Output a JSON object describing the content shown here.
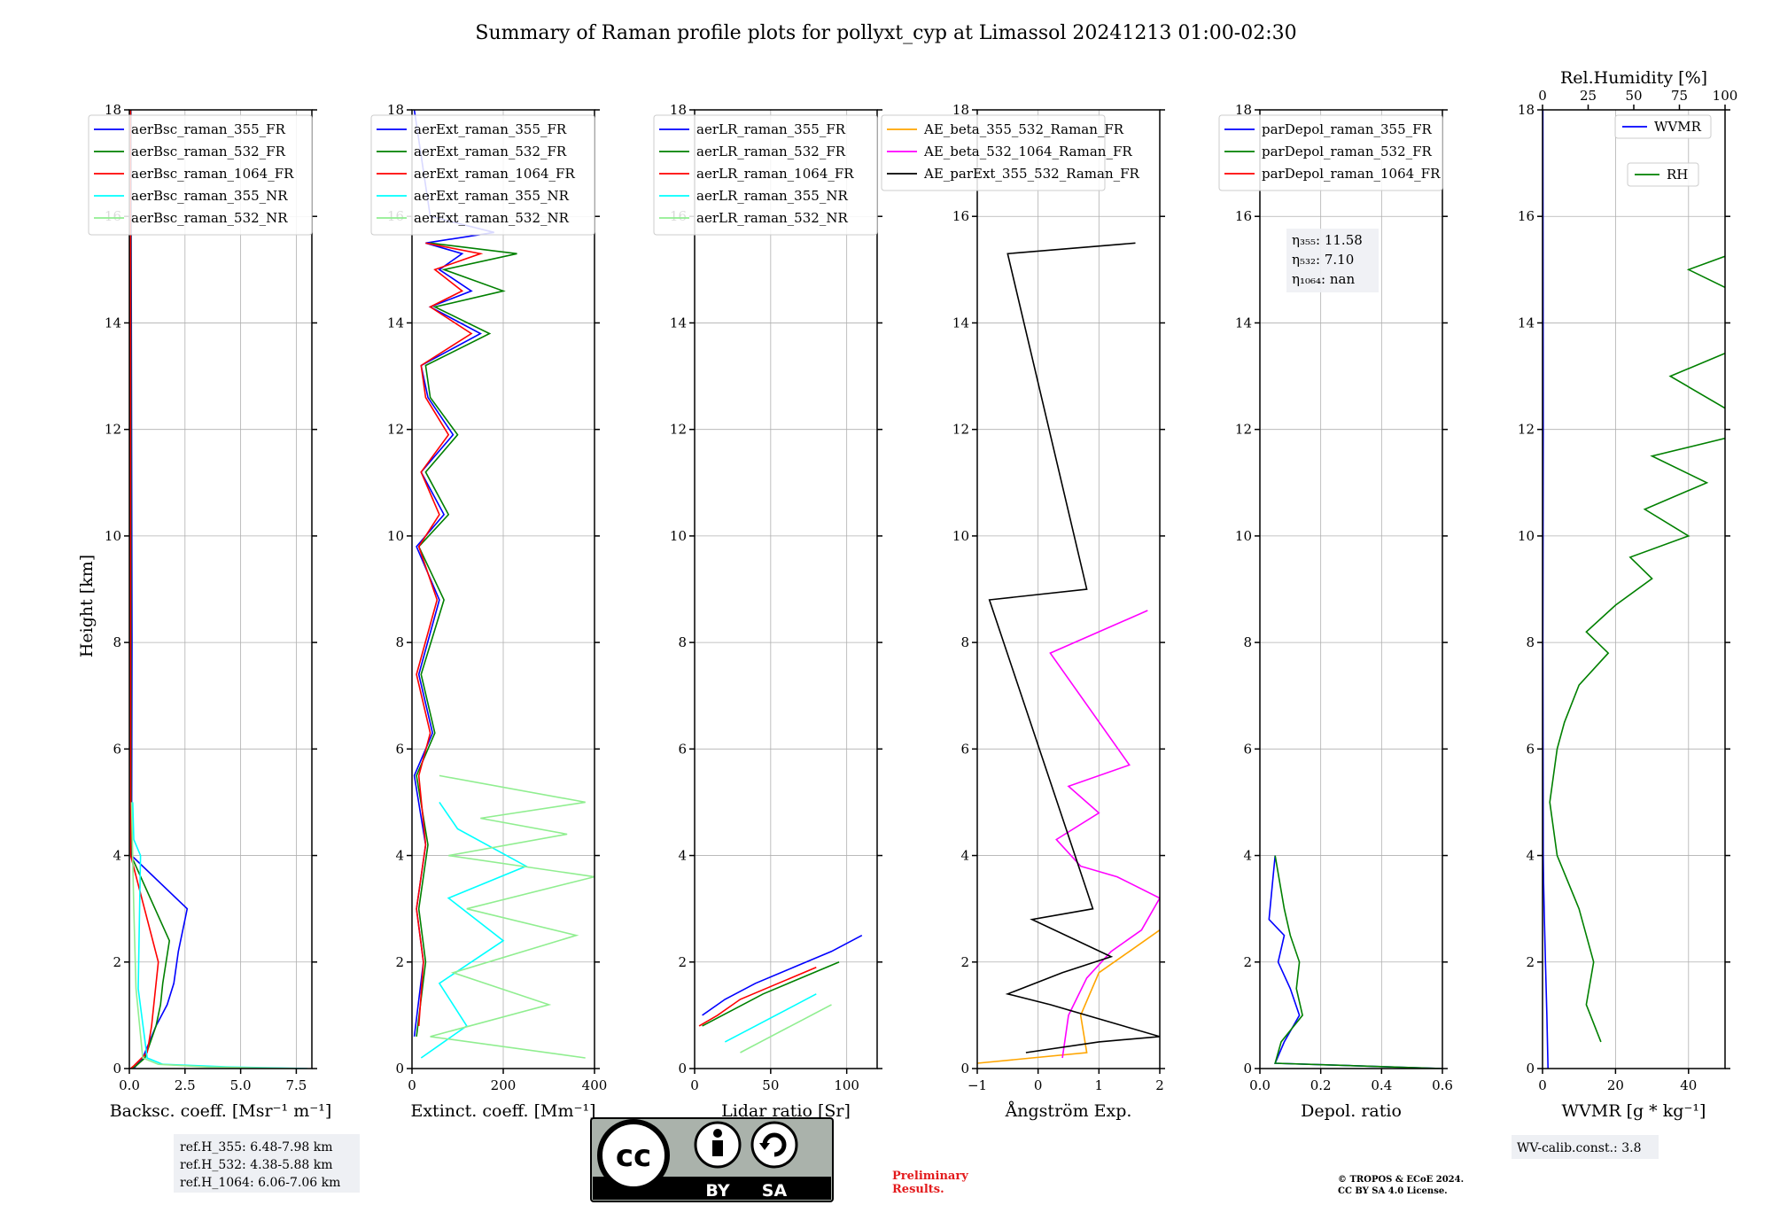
{
  "chart_data": {
    "title": "Summary of Raman profile plots for pollyxt_cyp at Limassol 20241213 01:00-02:30",
    "ylabel": "Height [km]",
    "ylim": [
      0,
      18
    ],
    "yticks": [
      "0",
      "2",
      "4",
      "6",
      "8",
      "10",
      "12",
      "14",
      "16",
      "18"
    ],
    "grid": true,
    "panels": [
      {
        "type": "line",
        "xlabel": "Backsc. coeff. [Msr⁻¹ m⁻¹]",
        "xlim": [
          0,
          8.2
        ],
        "xticks": [
          {
            "value": 0,
            "label": "0.0"
          },
          {
            "value": 2.5,
            "label": "2.5"
          },
          {
            "value": 5,
            "label": "5.0"
          },
          {
            "value": 7.5,
            "label": "7.5"
          }
        ],
        "legend_placement": "top-left",
        "series": [
          {
            "name": "aerBsc_raman_355_FR",
            "color": "#0000ff",
            "x": [
              0.2,
              0.3,
              0.6,
              1.2,
              1.7,
              2.0,
              2.2,
              2.6,
              0.1,
              0.12,
              0.1,
              0.08,
              0.07
            ],
            "y": [
              0,
              0.05,
              0.2,
              0.8,
              1.2,
              1.6,
              2.2,
              3.0,
              4.0,
              8.0,
              12.0,
              16.0,
              18.0
            ]
          },
          {
            "name": "aerBsc_raman_532_FR",
            "color": "#008000",
            "x": [
              0.1,
              0.3,
              0.7,
              1.2,
              1.4,
              1.5,
              1.8,
              0.08,
              0.07,
              0.06
            ],
            "y": [
              0,
              0.05,
              0.2,
              0.8,
              1.2,
              1.6,
              2.4,
              4.0,
              12.0,
              18.0
            ]
          },
          {
            "name": "aerBsc_raman_1064_FR",
            "color": "#ff0000",
            "x": [
              0.05,
              0.2,
              0.8,
              1.0,
              1.1,
              1.3,
              0.06,
              0.05,
              0.05
            ],
            "y": [
              0,
              0.05,
              0.3,
              0.8,
              1.2,
              2.0,
              4.0,
              12.0,
              18.0
            ]
          },
          {
            "name": "aerBsc_raman_355_NR",
            "color": "#00ffff",
            "x": [
              8.0,
              4.5,
              1.5,
              0.8,
              0.4,
              0.5,
              0.2,
              0.15
            ],
            "y": [
              0,
              0.03,
              0.08,
              0.2,
              1.5,
              4.0,
              4.3,
              5.0
            ]
          },
          {
            "name": "aerBsc_raman_532_NR",
            "color": "#90ee90",
            "x": [
              7.5,
              3.5,
              1.3,
              0.6,
              0.3,
              0.2,
              0.1
            ],
            "y": [
              0,
              0.03,
              0.08,
              0.2,
              1.5,
              3.0,
              5.0
            ]
          }
        ]
      },
      {
        "type": "line",
        "xlabel": "Extinct. coeff. [Mm⁻¹]",
        "xlim": [
          0,
          400
        ],
        "xticks": [
          {
            "value": 0,
            "label": "0"
          },
          {
            "value": 200,
            "label": "200"
          },
          {
            "value": 400,
            "label": "400"
          }
        ],
        "legend_placement": "top-left",
        "series": [
          {
            "name": "aerExt_raman_355_FR",
            "color": "#0000ff",
            "x": [
              5,
              25,
              10,
              30,
              5,
              45,
              15,
              60,
              10,
              70,
              20,
              90,
              35,
              20,
              150,
              40,
              130,
              60,
              110,
              30,
              180,
              40,
              5
            ],
            "y": [
              0.6,
              2.0,
              3.0,
              4.2,
              5.5,
              6.3,
              7.4,
              8.8,
              9.8,
              10.4,
              11.2,
              11.9,
              12.6,
              13.2,
              13.8,
              14.3,
              14.6,
              15.0,
              15.3,
              15.5,
              15.7,
              16.0,
              18.0
            ]
          },
          {
            "name": "aerExt_raman_532_FR",
            "color": "#008000",
            "x": [
              10,
              30,
              15,
              35,
              10,
              50,
              20,
              70,
              15,
              80,
              30,
              100,
              40,
              30,
              170,
              50,
              200,
              70,
              230,
              40
            ],
            "y": [
              0.6,
              2.0,
              3.0,
              4.2,
              5.5,
              6.3,
              7.4,
              8.8,
              9.8,
              10.4,
              11.2,
              11.9,
              12.6,
              13.2,
              13.8,
              14.3,
              14.6,
              15.0,
              15.3,
              15.5
            ]
          },
          {
            "name": "aerExt_raman_1064_FR",
            "color": "#ff0000",
            "x": [
              15,
              25,
              10,
              30,
              15,
              40,
              10,
              55,
              15,
              60,
              20,
              80,
              30,
              20,
              130,
              40,
              110,
              50,
              150,
              30
            ],
            "y": [
              0.8,
              2.0,
              3.0,
              4.2,
              5.5,
              6.3,
              7.4,
              8.8,
              9.8,
              10.4,
              11.2,
              11.9,
              12.6,
              13.2,
              13.8,
              14.3,
              14.6,
              15.0,
              15.3,
              15.5
            ]
          },
          {
            "name": "aerExt_raman_355_NR",
            "color": "#00ffff",
            "x": [
              20,
              120,
              60,
              200,
              80,
              250,
              100,
              60
            ],
            "y": [
              0.2,
              0.8,
              1.6,
              2.4,
              3.2,
              3.8,
              4.5,
              5.0
            ]
          },
          {
            "name": "aerExt_raman_532_NR",
            "color": "#90ee90",
            "x": [
              380,
              40,
              300,
              90,
              360,
              120,
              400,
              80,
              340,
              150,
              380,
              60
            ],
            "y": [
              0.2,
              0.6,
              1.2,
              1.8,
              2.5,
              3.0,
              3.6,
              4.0,
              4.4,
              4.7,
              5.0,
              5.5
            ]
          }
        ]
      },
      {
        "type": "line",
        "xlabel": "Lidar ratio [Sr]",
        "xlim": [
          0,
          120
        ],
        "xticks": [
          {
            "value": 0,
            "label": "0"
          },
          {
            "value": 50,
            "label": "50"
          },
          {
            "value": 100,
            "label": "100"
          }
        ],
        "legend_placement": "top-left",
        "series": [
          {
            "name": "aerLR_raman_355_FR",
            "color": "#0000ff",
            "x": [
              5,
              20,
              40,
              65,
              90,
              110
            ],
            "y": [
              1.0,
              1.3,
              1.6,
              1.9,
              2.2,
              2.5
            ]
          },
          {
            "name": "aerLR_raman_532_FR",
            "color": "#008000",
            "x": [
              5,
              25,
              45,
              70,
              95
            ],
            "y": [
              0.8,
              1.1,
              1.4,
              1.7,
              2.0
            ]
          },
          {
            "name": "aerLR_raman_1064_FR",
            "color": "#ff0000",
            "x": [
              3,
              15,
              30,
              55,
              80
            ],
            "y": [
              0.8,
              1.0,
              1.3,
              1.6,
              1.9
            ]
          },
          {
            "name": "aerLR_raman_355_NR",
            "color": "#00ffff",
            "x": [
              20,
              40,
              60,
              80
            ],
            "y": [
              0.5,
              0.8,
              1.1,
              1.4
            ]
          },
          {
            "name": "aerLR_raman_532_NR",
            "color": "#90ee90",
            "x": [
              30,
              50,
              70,
              90
            ],
            "y": [
              0.3,
              0.6,
              0.9,
              1.2
            ]
          }
        ]
      },
      {
        "type": "line",
        "xlabel": "Ångström Exp.",
        "xlim": [
          -1,
          2
        ],
        "xticks": [
          {
            "value": -1,
            "label": "−1"
          },
          {
            "value": 0,
            "label": "0"
          },
          {
            "value": 1,
            "label": "1"
          },
          {
            "value": 2,
            "label": "2"
          }
        ],
        "legend_placement": "top-center",
        "series": [
          {
            "name": "AE_beta_355_532_Raman_FR",
            "color": "#ffa500",
            "x": [
              -1,
              0.8,
              0.7,
              1.0,
              1.5,
              2.0
            ],
            "y": [
              0.1,
              0.3,
              1.0,
              1.8,
              2.2,
              2.6
            ]
          },
          {
            "name": "AE_beta_532_1064_Raman_FR",
            "color": "#ff00ff",
            "x": [
              0.4,
              0.5,
              0.8,
              1.2,
              1.7,
              2.0,
              1.3,
              0.7,
              0.3,
              1.0,
              0.5,
              1.5,
              0.2,
              1.8
            ],
            "y": [
              0.2,
              1.0,
              1.7,
              2.2,
              2.6,
              3.2,
              3.6,
              3.8,
              4.3,
              4.8,
              5.3,
              5.7,
              7.8,
              8.6
            ]
          },
          {
            "name": "AE_parExt_355_532_Raman_FR",
            "color": "#000000",
            "x": [
              -0.2,
              1.0,
              2.0,
              0.2,
              -0.5,
              0.4,
              1.2,
              -0.1,
              0.9,
              -0.8,
              0.8,
              -0.5,
              1.6
            ],
            "y": [
              0.3,
              0.5,
              0.6,
              1.2,
              1.4,
              1.8,
              2.1,
              2.8,
              3.0,
              8.8,
              9.0,
              15.3,
              15.5
            ]
          }
        ]
      },
      {
        "type": "line",
        "xlabel": "Depol. ratio",
        "xlim": [
          0,
          0.6
        ],
        "xticks": [
          {
            "value": 0,
            "label": "0.0"
          },
          {
            "value": 0.2,
            "label": "0.2"
          },
          {
            "value": 0.4,
            "label": "0.4"
          },
          {
            "value": 0.6,
            "label": "0.6"
          }
        ],
        "legend_placement": "top-left",
        "series": [
          {
            "name": "parDepol_raman_355_FR",
            "color": "#0000ff",
            "x": [
              0.6,
              0.05,
              0.08,
              0.13,
              0.1,
              0.06,
              0.08,
              0.03,
              0.05
            ],
            "y": [
              0,
              0.1,
              0.5,
              1.0,
              1.5,
              2.0,
              2.5,
              2.8,
              4.0
            ]
          },
          {
            "name": "parDepol_raman_532_FR",
            "color": "#008000",
            "x": [
              0.6,
              0.05,
              0.07,
              0.14,
              0.12,
              0.13,
              0.1,
              0.08,
              0.05
            ],
            "y": [
              0,
              0.1,
              0.5,
              1.0,
              1.5,
              2.0,
              2.5,
              3.0,
              4.0
            ]
          },
          {
            "name": "parDepol_raman_1064_FR",
            "color": "#ff0000",
            "x": [],
            "y": []
          }
        ],
        "annotations": [
          "η₃₅₅: 11.58",
          "η₅₃₂: 7.10",
          "η₁₀₆₄: nan"
        ]
      },
      {
        "type": "line",
        "xlabel": "WVMR [g * kg⁻¹]",
        "xlim": [
          0,
          50
        ],
        "xticks": [
          {
            "value": 0,
            "label": "0"
          },
          {
            "value": 20,
            "label": "20"
          },
          {
            "value": 40,
            "label": "40"
          }
        ],
        "secondary_xlabel": "Rel.Humidity [%]",
        "secondary_xlim": [
          0,
          100
        ],
        "secondary_xticks": [
          {
            "value": 0,
            "label": "0"
          },
          {
            "value": 25,
            "label": "25"
          },
          {
            "value": 50,
            "label": "50"
          },
          {
            "value": 75,
            "label": "75"
          },
          {
            "value": 100,
            "label": "100"
          }
        ],
        "legend_placement": "top-right",
        "series": [
          {
            "name": "WVMR",
            "color": "#0000ff",
            "x": [
              1.5,
              1.2,
              0.8,
              0.5,
              0.3,
              0.2,
              0.1,
              0.2,
              0.1
            ],
            "y": [
              0,
              1.0,
              2.0,
              2.8,
              3.5,
              4.0,
              8.0,
              12.0,
              18.0
            ]
          },
          {
            "name": "RH",
            "color": "#008000",
            "x": [
              16,
              12,
              14,
              10,
              4,
              2,
              4,
              6,
              10,
              18,
              12,
              20,
              30,
              24,
              40,
              28,
              45,
              30,
              60,
              35,
              70,
              40,
              80,
              50
            ],
            "y": [
              0.5,
              1.2,
              2.0,
              3.0,
              4.0,
              5.0,
              6.0,
              6.5,
              7.2,
              7.8,
              8.2,
              8.7,
              9.2,
              9.6,
              10.0,
              10.5,
              11.0,
              11.5,
              12.0,
              13.0,
              14.0,
              15.0,
              16.0,
              17.0
            ]
          }
        ]
      }
    ]
  },
  "footer": {
    "ref_box": [
      "ref.H_355: 6.48-7.98 km",
      "ref.H_532: 4.38-5.88 km",
      "ref.H_1064: 6.06-7.06 km"
    ],
    "cc_by": "BY",
    "cc_sa": "SA",
    "cc_mark": "cc",
    "preliminary": [
      "Preliminary",
      "Results."
    ],
    "copyright": [
      "© TROPOS & ECoE 2024.",
      "CC BY SA 4.0 License."
    ],
    "wv_calib": "WV-calib.const.: 3.8"
  }
}
